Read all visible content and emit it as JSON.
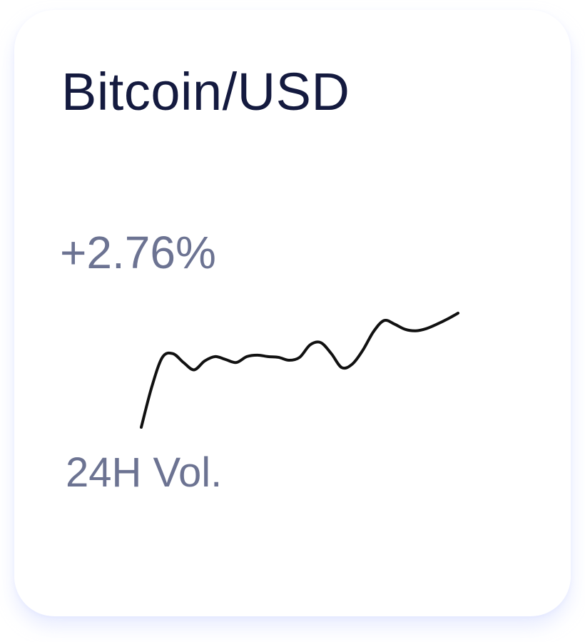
{
  "card": {
    "pair": "Bitcoin/USD",
    "change": "+2.76%",
    "volume_label": "24H Vol."
  },
  "chart_data": {
    "type": "line",
    "x": [
      0,
      1,
      2,
      3,
      4,
      5,
      6,
      7,
      8,
      9,
      10,
      11,
      12,
      13,
      14,
      15,
      16,
      17,
      18,
      19,
      20,
      21,
      22,
      23,
      24,
      25,
      26,
      27,
      28,
      29,
      30
    ],
    "series": [
      {
        "values": [
          0.0,
          0.55,
          0.95,
          1.0,
          0.88,
          0.78,
          0.9,
          0.96,
          0.92,
          0.88,
          0.96,
          0.98,
          0.96,
          0.95,
          0.91,
          0.95,
          1.12,
          1.15,
          1.0,
          0.81,
          0.86,
          1.05,
          1.3,
          1.45,
          1.4,
          1.33,
          1.31,
          1.34,
          1.4,
          1.47,
          1.55
        ]
      }
    ],
    "xlabel": "",
    "ylabel": "",
    "grid": false,
    "color": "#111111"
  }
}
